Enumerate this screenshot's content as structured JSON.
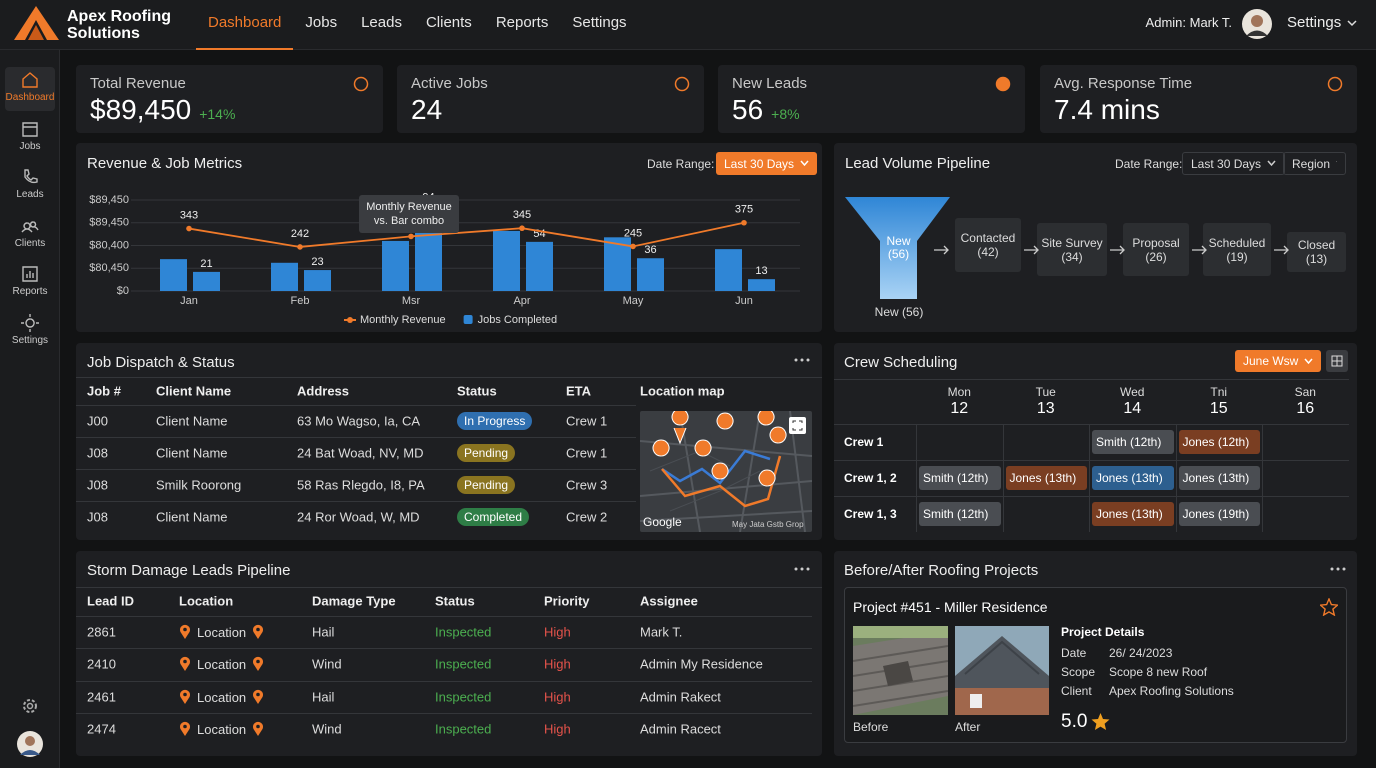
{
  "brand": {
    "name": "Apex Roofing Solutions"
  },
  "nav": [
    "Dashboard",
    "Jobs",
    "Leads",
    "Clients",
    "Reports",
    "Settings"
  ],
  "user": {
    "label": "Admin: Mark T.",
    "menu": "Settings"
  },
  "sidebar": [
    "Dashboard",
    "Jobs",
    "Leads",
    "Clients",
    "Reports",
    "Settings"
  ],
  "kpis": [
    {
      "label": "Total Revenue",
      "value": "$89,450",
      "change": "+14%"
    },
    {
      "label": "Active Jobs",
      "value": "24"
    },
    {
      "label": "New Leads",
      "value": "56",
      "change": "+8%"
    },
    {
      "label": "Avg. Response Time",
      "value": "7.4 mins"
    }
  ],
  "revenue_chart": {
    "type": "bar",
    "title": "Revenue & Job Metrics",
    "date_range_label": "Date Range:",
    "date_range": "Last 30 Days",
    "tooltip": "Monthly Revenue vs. Bar combo",
    "y_labels": [
      "$89,450",
      "$89,450",
      "$80,400",
      "$80,450",
      "$0"
    ],
    "categories": [
      "Jan",
      "Feb",
      "Msr",
      "Apr",
      "May",
      "Jun"
    ],
    "ylim": [
      0,
      100
    ],
    "y2lim": [
      0,
      500
    ],
    "series": [
      {
        "name": "Monthly Revenue",
        "type": "line",
        "axis": "y2",
        "color": "#f07a2a",
        "values": [
          343,
          242,
          300,
          345,
          245,
          375
        ],
        "value_labels": [
          "343",
          "242",
          null,
          "345",
          "245",
          "375"
        ]
      },
      {
        "color": "#2f86d6",
        "values": [
          35,
          31,
          55,
          66,
          59,
          46
        ]
      },
      {
        "name": "Jobs Completed",
        "color": "#2f86d6",
        "values": [
          21,
          23,
          94,
          54,
          36,
          13
        ]
      }
    ]
  },
  "pipeline": {
    "title": "Lead Volume Pipeline",
    "date_range_label": "Date Range:",
    "date_range": "Last 30 Days",
    "region": "Region",
    "funnel_label": "New (56)",
    "funnel_caption": "New (56)",
    "stages": [
      "Contacted (42)",
      "Site Survey (34)",
      "Proposal (26)",
      "Scheduled (19)",
      "Closed (13)"
    ]
  },
  "dispatch": {
    "title": "Job Dispatch & Status",
    "headers": [
      "Job #",
      "Client Name",
      "Address",
      "Status",
      "ETA",
      "Location map"
    ],
    "rows": [
      [
        "J00",
        "Client Name",
        "63 Mo Wagso, Ia, CA",
        "In Progress",
        "Crew 1"
      ],
      [
        "J08",
        "Client Name",
        "24 Bat Woad, NV, MD",
        "Pending",
        "Crew 1"
      ],
      [
        "J08",
        "Smilk Roorong",
        "58 Ras Rlegdo, I8, PA",
        "Pending",
        "Crew 3"
      ],
      [
        "J08",
        "Client Name",
        "24 Ror Woad, W, MD",
        "Completed",
        "Crew 2"
      ]
    ],
    "status_colors": [
      "#2f6fb0",
      "#8a7420",
      "#8a7420",
      "#2e7d46"
    ],
    "map_label": "Google",
    "map_credit": "May Jata Gstb Grop"
  },
  "crew": {
    "title": "Crew Scheduling",
    "week": "June Wsw",
    "days": [
      [
        "Mon",
        "12"
      ],
      [
        "Tue",
        "13"
      ],
      [
        "Wed",
        "14"
      ],
      [
        "Tni",
        "15"
      ],
      [
        "San",
        "16"
      ]
    ],
    "rows": [
      {
        "name": "Crew 1",
        "cells": [
          null,
          null,
          {
            "text": "Smith (12th)",
            "color": "#4a4d52"
          },
          {
            "text": "Jones (12th)",
            "color": "#7a3e22"
          },
          null
        ]
      },
      {
        "name": "Crew 1, 2",
        "cells": [
          {
            "text": "Smith (12th)",
            "color": "#4a4d52"
          },
          {
            "text": "Jones (13th)",
            "color": "#7a3e22"
          },
          {
            "text": "Jones (13th)",
            "color": "#2d5f8f"
          },
          {
            "text": "Jones (13th)",
            "color": "#4a4d52"
          },
          null
        ]
      },
      {
        "name": "Crew 1, 3",
        "cells": [
          {
            "text": "Smith (12th)",
            "color": "#4a4d52"
          },
          null,
          {
            "text": "Jones (13th)",
            "color": "#7a3e22"
          },
          {
            "text": "Jones (19th)",
            "color": "#4a4d52"
          },
          null
        ]
      }
    ]
  },
  "storm": {
    "title": "Storm Damage Leads Pipeline",
    "headers": [
      "Lead ID",
      "Location",
      "Damage Type",
      "Status",
      "Priority",
      "Assignee"
    ],
    "rows": [
      [
        "2861",
        "Location",
        "Hail",
        "Inspected",
        "High",
        "Mark T."
      ],
      [
        "2410",
        "Location",
        "Wind",
        "Inspected",
        "High",
        "Admin My Residence"
      ],
      [
        "2461",
        "Location",
        "Hail",
        "Inspected",
        "High",
        "Admin Rakect"
      ],
      [
        "2474",
        "Location",
        "Wind",
        "Inspected",
        "High",
        "Admin Racect"
      ]
    ]
  },
  "projects": {
    "title": "Before/After Roofing Projects",
    "card_title": "Project #451 - Miller Residence",
    "before": "Before",
    "after": "After",
    "details_title": "Project Details",
    "details": [
      [
        "Date",
        "26/ 24/2023"
      ],
      [
        "Scope",
        "Scope 8 new Roof"
      ],
      [
        "Client",
        "Apex Roofing Solutions"
      ]
    ],
    "rating": "5.0"
  }
}
